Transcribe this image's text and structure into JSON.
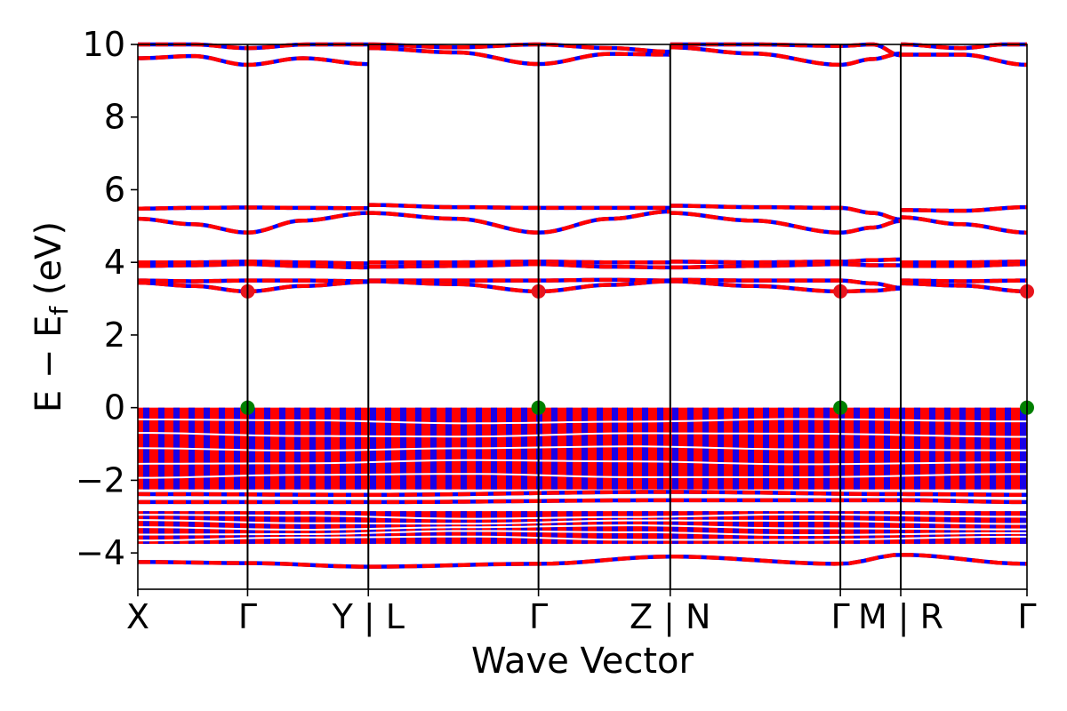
{
  "chart_data": {
    "type": "line",
    "xlabel": "Wave Vector",
    "ylabel": "E − E_f (eV)",
    "ylabel_parts": {
      "main": "E − E",
      "sub": "f",
      "unit": " (eV)"
    },
    "ylim": [
      -5,
      10
    ],
    "yticks": [
      -4,
      -2,
      0,
      2,
      4,
      6,
      8,
      10
    ],
    "ytick_labels": [
      "−4",
      "−2",
      "0",
      "2",
      "4",
      "6",
      "8",
      "10"
    ],
    "grid": false,
    "legend": "none",
    "kpath": {
      "positions": [
        0,
        1,
        2.1,
        3.65,
        4.85,
        6.4,
        6.95,
        8.1
      ],
      "labels": [
        "X",
        "Γ",
        "Y | L",
        "Γ",
        "Z | N",
        "Γ",
        "M | R",
        "Γ"
      ],
      "segments": [
        [
          0,
          2.1
        ],
        [
          2.1,
          4.85
        ],
        [
          4.85,
          6.95
        ],
        [
          6.95,
          8.1
        ]
      ]
    },
    "colors": {
      "band_primary": "#0000ff",
      "band_secondary": "#ff0000",
      "cbm_marker": "#e8141c",
      "vbm_marker": "#008000",
      "vline": "#000000"
    },
    "band_style": "dashed overlay of two spin channels (blue solid, red dashed)",
    "conduction_bands_by_segment": [
      [
        {
          "x": [
            0,
            0.5,
            1,
            1.5,
            2.1
          ],
          "y": [
            9.62,
            9.68,
            9.44,
            9.62,
            9.46
          ]
        },
        {
          "x": [
            0,
            0.5,
            1,
            1.55,
            2.1
          ],
          "y": [
            10.0,
            10.0,
            9.9,
            10.0,
            10.0
          ]
        },
        {
          "x": [
            0,
            0.5,
            1,
            1.5,
            2.1
          ],
          "y": [
            5.48,
            5.5,
            5.51,
            5.5,
            5.49
          ]
        },
        {
          "x": [
            0,
            0.5,
            1,
            1.5,
            2.1
          ],
          "y": [
            5.2,
            5.05,
            4.82,
            5.15,
            5.36
          ]
        },
        {
          "x": [
            0,
            0.5,
            1,
            1.5,
            2.1
          ],
          "y": [
            4.0,
            4.0,
            4.02,
            4.0,
            3.97
          ]
        },
        {
          "x": [
            0,
            0.5,
            1,
            1.5,
            2.1
          ],
          "y": [
            3.9,
            3.92,
            3.95,
            3.9,
            3.86
          ]
        },
        {
          "x": [
            0,
            0.5,
            1,
            1.5,
            2.1
          ],
          "y": [
            3.5,
            3.48,
            3.5,
            3.5,
            3.48
          ]
        },
        {
          "x": [
            0,
            0.5,
            1,
            1.5,
            2.1
          ],
          "y": [
            3.44,
            3.35,
            3.2,
            3.35,
            3.46
          ]
        }
      ],
      [
        {
          "x": [
            2.1,
            2.9,
            3.65,
            4.3,
            4.85
          ],
          "y": [
            9.9,
            9.78,
            9.46,
            9.74,
            9.72
          ]
        },
        {
          "x": [
            2.1,
            2.9,
            3.65,
            4.3,
            4.85
          ],
          "y": [
            10.0,
            9.92,
            10.0,
            9.9,
            9.8
          ]
        },
        {
          "x": [
            2.1,
            2.9,
            3.65,
            4.3,
            4.85
          ],
          "y": [
            5.58,
            5.52,
            5.5,
            5.5,
            5.5
          ]
        },
        {
          "x": [
            2.1,
            2.9,
            3.65,
            4.3,
            4.85
          ],
          "y": [
            5.36,
            5.2,
            4.82,
            5.2,
            5.4
          ]
        },
        {
          "x": [
            2.1,
            2.9,
            3.65,
            4.3,
            4.85
          ],
          "y": [
            4.0,
            4.0,
            4.02,
            4.0,
            4.0
          ]
        },
        {
          "x": [
            2.1,
            2.9,
            3.65,
            4.3,
            4.85
          ],
          "y": [
            3.88,
            3.9,
            3.95,
            3.88,
            3.86
          ]
        },
        {
          "x": [
            2.1,
            2.9,
            3.65,
            4.3,
            4.85
          ],
          "y": [
            3.5,
            3.5,
            3.5,
            3.52,
            3.5
          ]
        },
        {
          "x": [
            2.1,
            2.9,
            3.65,
            4.3,
            4.85
          ],
          "y": [
            3.48,
            3.4,
            3.2,
            3.38,
            3.48
          ]
        }
      ],
      [
        {
          "x": [
            4.85,
            5.6,
            6.4,
            6.7,
            6.95
          ],
          "y": [
            9.92,
            9.75,
            9.44,
            9.6,
            9.75
          ]
        },
        {
          "x": [
            4.85,
            5.6,
            6.4,
            6.7,
            6.95
          ],
          "y": [
            10.0,
            10.0,
            9.96,
            10.0,
            9.7
          ]
        },
        {
          "x": [
            4.85,
            5.6,
            6.4,
            6.7,
            6.95
          ],
          "y": [
            5.56,
            5.52,
            5.5,
            5.36,
            5.18
          ]
        },
        {
          "x": [
            4.85,
            5.6,
            6.4,
            6.7,
            6.95
          ],
          "y": [
            5.36,
            5.15,
            4.82,
            4.96,
            5.14
          ]
        },
        {
          "x": [
            4.85,
            5.6,
            6.4,
            6.7,
            6.95
          ],
          "y": [
            4.02,
            4.0,
            4.02,
            4.06,
            4.08
          ]
        },
        {
          "x": [
            4.85,
            5.6,
            6.4,
            6.7,
            6.95
          ],
          "y": [
            3.86,
            3.9,
            3.95,
            3.92,
            3.92
          ]
        },
        {
          "x": [
            4.85,
            5.6,
            6.4,
            6.7,
            6.95
          ],
          "y": [
            3.52,
            3.5,
            3.5,
            3.42,
            3.3
          ]
        },
        {
          "x": [
            4.85,
            5.6,
            6.4,
            6.7,
            6.95
          ],
          "y": [
            3.48,
            3.35,
            3.2,
            3.22,
            3.28
          ]
        }
      ],
      [
        {
          "x": [
            6.95,
            7.5,
            8.1
          ],
          "y": [
            9.72,
            9.72,
            9.44
          ]
        },
        {
          "x": [
            6.95,
            7.5,
            7.9,
            8.1
          ],
          "y": [
            10.0,
            9.9,
            10.0,
            10.0
          ]
        },
        {
          "x": [
            6.95,
            7.5,
            8.1
          ],
          "y": [
            5.44,
            5.42,
            5.52
          ]
        },
        {
          "x": [
            6.95,
            7.5,
            8.1
          ],
          "y": [
            5.24,
            5.05,
            4.82
          ]
        },
        {
          "x": [
            6.95,
            7.5,
            8.1
          ],
          "y": [
            4.0,
            4.0,
            4.02
          ]
        },
        {
          "x": [
            6.95,
            7.5,
            8.1
          ],
          "y": [
            3.9,
            3.9,
            3.95
          ]
        },
        {
          "x": [
            6.95,
            7.5,
            8.1
          ],
          "y": [
            3.5,
            3.48,
            3.5
          ]
        },
        {
          "x": [
            6.95,
            7.5,
            8.1
          ],
          "y": [
            3.42,
            3.36,
            3.2
          ]
        }
      ]
    ],
    "valence_dense_region": {
      "ymin": -2.25,
      "ymax": 0.0
    },
    "valence_lower_region": {
      "ymin": -3.75,
      "ymax": -2.85
    },
    "lowest_band": {
      "x": [
        0,
        1,
        2.1,
        3.65,
        4.85,
        6.4,
        6.95,
        8.1
      ],
      "y": [
        -4.25,
        -4.28,
        -4.38,
        -4.3,
        -4.1,
        -4.3,
        -4.05,
        -4.3
      ]
    },
    "cbm_points": {
      "x": [
        1,
        3.65,
        6.4,
        8.1
      ],
      "y": [
        3.2,
        3.2,
        3.2,
        3.2
      ]
    },
    "vbm_points": {
      "x": [
        1,
        3.65,
        6.4,
        8.1
      ],
      "y": [
        0,
        0,
        0,
        0
      ]
    }
  }
}
